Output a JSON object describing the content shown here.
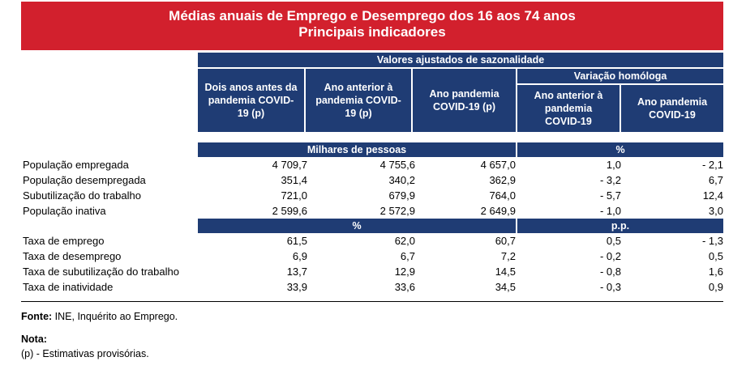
{
  "title": {
    "line1": "Médias anuais de Emprego e Desemprego dos 16 aos 74 anos",
    "line2": "Principais indicadores"
  },
  "header": {
    "group_top": "Valores ajustados de sazonalidade",
    "group_variation": "Variação homóloga",
    "columns": [
      "Dois anos antes da pandemia COVID-19 (p)",
      "Ano anterior à pandemia COVID-19 (p)",
      "Ano pandemia COVID-19 (p)",
      "Ano anterior à pandemia COVID-19",
      "Ano pandemia COVID-19"
    ]
  },
  "section1": {
    "unit_left": "Milhares de pessoas",
    "unit_right": "%",
    "rows": [
      {
        "label": "População empregada",
        "values": [
          "4 709,7",
          "4 755,6",
          "4 657,0",
          "1,0",
          "- 2,1"
        ]
      },
      {
        "label": "População desempregada",
        "values": [
          "351,4",
          "340,2",
          "362,9",
          "- 3,2",
          "6,7"
        ]
      },
      {
        "label": "Subutilização do trabalho",
        "values": [
          "721,0",
          "679,9",
          "764,0",
          "- 5,7",
          "12,4"
        ]
      },
      {
        "label": "População inativa",
        "values": [
          "2 599,6",
          "2 572,9",
          "2 649,9",
          "- 1,0",
          "3,0"
        ]
      }
    ]
  },
  "section2": {
    "unit_left": "%",
    "unit_right": "p.p.",
    "rows": [
      {
        "label": "Taxa de emprego",
        "values": [
          "61,5",
          "62,0",
          "60,7",
          "0,5",
          "- 1,3"
        ]
      },
      {
        "label": "Taxa de desemprego",
        "values": [
          "6,9",
          "6,7",
          "7,2",
          "- 0,2",
          "0,5"
        ]
      },
      {
        "label": "Taxa de subutilização do trabalho",
        "values": [
          "13,7",
          "12,9",
          "14,5",
          "- 0,8",
          "1,6"
        ]
      },
      {
        "label": "Taxa de inatividade",
        "values": [
          "33,9",
          "33,6",
          "34,5",
          "- 0,3",
          "0,9"
        ]
      }
    ]
  },
  "footer": {
    "source_label": "Fonte:",
    "source_text": "INE, Inquérito ao Emprego.",
    "note_label": "Nota:",
    "note_text": "(p) - Estimativas provisórias."
  }
}
